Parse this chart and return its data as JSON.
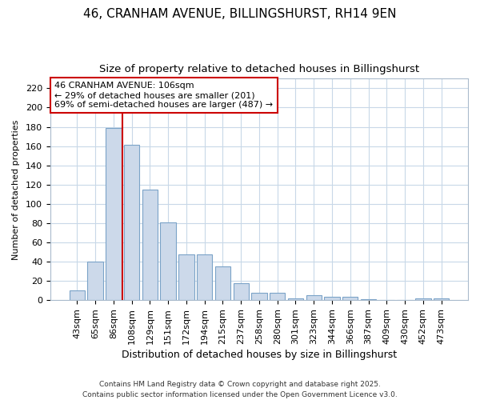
{
  "title1": "46, CRANHAM AVENUE, BILLINGSHURST, RH14 9EN",
  "title2": "Size of property relative to detached houses in Billingshurst",
  "xlabel": "Distribution of detached houses by size in Billingshurst",
  "ylabel": "Number of detached properties",
  "categories": [
    "43sqm",
    "65sqm",
    "86sqm",
    "108sqm",
    "129sqm",
    "151sqm",
    "172sqm",
    "194sqm",
    "215sqm",
    "237sqm",
    "258sqm",
    "280sqm",
    "301sqm",
    "323sqm",
    "344sqm",
    "366sqm",
    "387sqm",
    "409sqm",
    "430sqm",
    "452sqm",
    "473sqm"
  ],
  "values": [
    10,
    40,
    179,
    161,
    115,
    81,
    48,
    48,
    35,
    18,
    8,
    8,
    2,
    5,
    4,
    4,
    1,
    0,
    0,
    2,
    2
  ],
  "bar_color": "#ccd9ea",
  "bar_edge_color": "#7ba3c8",
  "vline_color": "#cc0000",
  "vline_pos": 2.5,
  "annotation_text": "46 CRANHAM AVENUE: 106sqm\n← 29% of detached houses are smaller (201)\n69% of semi-detached houses are larger (487) →",
  "annotation_box_facecolor": "#ffffff",
  "annotation_box_edgecolor": "#cc0000",
  "ylim": [
    0,
    230
  ],
  "yticks": [
    0,
    20,
    40,
    60,
    80,
    100,
    120,
    140,
    160,
    180,
    200,
    220
  ],
  "footer": "Contains HM Land Registry data © Crown copyright and database right 2025.\nContains public sector information licensed under the Open Government Licence v3.0.",
  "bg_color": "#ffffff",
  "plot_bg_color": "#ffffff",
  "grid_color": "#c8d8e8",
  "title1_fontsize": 11,
  "title2_fontsize": 9.5,
  "xlabel_fontsize": 9,
  "ylabel_fontsize": 8,
  "tick_fontsize": 8,
  "ann_fontsize": 8,
  "footer_fontsize": 6.5
}
